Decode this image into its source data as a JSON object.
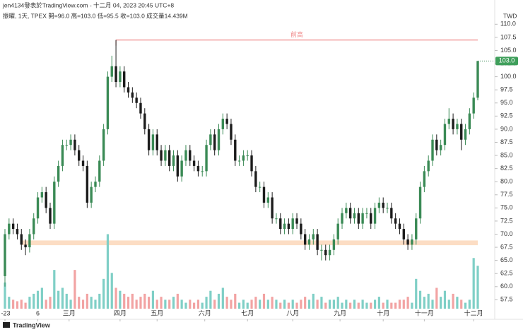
{
  "chart_data": {
    "type": "candlestick",
    "title": "jen4134發表於TradingView.com - 十二月 04, 2023 20:45 UTC+8",
    "subtitle": "振曜, 1天, TPEX 開=96.0 高=103.0 低=95.5 收=103.0 成交量14.439M",
    "currency": "TWD",
    "brand": "TradingView",
    "up_color": "#3a8a55",
    "down_color": "#1c1c1c",
    "volume_up_color": "#7fcfc6",
    "volume_down_color": "#f2a3a3",
    "grid": false,
    "open": [
      62,
      70,
      72,
      71,
      70,
      68,
      67.5,
      70,
      73,
      77,
      78,
      75,
      72,
      80,
      83,
      87,
      87,
      88,
      86,
      84,
      83,
      76,
      79,
      80,
      84,
      90,
      100,
      102,
      99,
      101,
      98,
      97,
      96,
      95,
      93,
      90,
      86,
      89,
      86,
      84,
      86,
      83,
      85,
      81,
      84,
      86,
      84,
      83,
      82,
      82,
      87,
      89,
      86,
      90,
      92,
      91,
      88,
      84,
      84,
      85,
      85,
      82,
      79,
      79,
      76,
      77,
      73,
      73,
      71,
      72,
      71,
      73,
      72,
      70,
      68,
      69,
      70,
      67,
      67,
      66,
      67,
      69,
      72,
      74,
      75,
      73,
      74,
      72,
      74,
      74,
      72,
      75,
      76,
      75,
      75,
      73,
      72,
      71,
      69,
      68,
      69,
      73,
      79,
      82,
      84,
      88,
      86,
      87,
      91,
      92,
      90,
      91,
      88,
      90,
      93,
      96
    ],
    "high": [
      71,
      73,
      73,
      72,
      71,
      69,
      71,
      74,
      78,
      79,
      79,
      76,
      81,
      84,
      88,
      88,
      89,
      89,
      87,
      85,
      84,
      80,
      81,
      85,
      91,
      101,
      104,
      107,
      102,
      102,
      99,
      98,
      97,
      96,
      94,
      91,
      90,
      90,
      87,
      87,
      87,
      86,
      86,
      85,
      87,
      87,
      85,
      84,
      83,
      88,
      90,
      90,
      91,
      93,
      93,
      92,
      89,
      85,
      86,
      86,
      86,
      83,
      80,
      80,
      78,
      78,
      74,
      74,
      73,
      73,
      74,
      74,
      73,
      71,
      70,
      71,
      71,
      68,
      68,
      68,
      70,
      73,
      75,
      76,
      76,
      75,
      75,
      75,
      75,
      75,
      76,
      77,
      77,
      76,
      76,
      74,
      73,
      72,
      70,
      70,
      74,
      80,
      83,
      85,
      89,
      89,
      88,
      92,
      94,
      93,
      92,
      92,
      91,
      94,
      97,
      103
    ],
    "low": [
      60,
      69,
      70,
      69,
      67,
      66,
      66.5,
      69,
      72,
      76,
      74,
      71,
      71,
      79,
      82,
      86,
      86,
      85,
      83,
      82,
      75,
      75,
      78,
      79,
      83,
      89,
      99,
      98,
      98,
      97,
      96,
      95,
      94,
      92,
      89,
      85,
      85,
      85,
      83,
      83,
      82,
      82,
      80,
      80,
      83,
      83,
      82,
      81,
      81,
      81,
      86,
      85,
      85,
      89,
      90,
      87,
      83,
      83,
      83,
      84,
      81,
      78,
      78,
      75,
      75,
      72,
      72,
      70,
      70,
      70,
      70,
      71,
      69,
      67,
      67,
      68,
      66,
      65,
      65,
      65,
      66,
      68,
      71,
      73,
      72,
      72,
      71,
      71,
      73,
      71,
      71,
      74,
      74,
      74,
      72,
      71,
      70,
      68,
      67,
      67,
      68,
      72,
      78,
      81,
      83,
      85,
      85,
      86,
      90,
      89,
      89,
      86,
      87,
      89,
      92,
      95.5
    ],
    "close": [
      70,
      72,
      71,
      70,
      68,
      67.5,
      70,
      73,
      77,
      78,
      75,
      72,
      80,
      83,
      87,
      87,
      88,
      86,
      84,
      83,
      76,
      79,
      80,
      84,
      90,
      100,
      102,
      99,
      101,
      98,
      97,
      96,
      95,
      93,
      90,
      86,
      89,
      86,
      84,
      86,
      83,
      85,
      81,
      84,
      86,
      84,
      83,
      82,
      82,
      87,
      89,
      86,
      90,
      92,
      91,
      88,
      84,
      84,
      85,
      85,
      82,
      79,
      79,
      76,
      77,
      73,
      73,
      71,
      72,
      71,
      73,
      72,
      70,
      68,
      69,
      70,
      67,
      67,
      66,
      67,
      69,
      72,
      74,
      75,
      73,
      74,
      72,
      74,
      74,
      72,
      75,
      76,
      75,
      75,
      73,
      72,
      71,
      69,
      68,
      69,
      73,
      79,
      82,
      84,
      88,
      86,
      87,
      91,
      92,
      90,
      91,
      88,
      90,
      93,
      96,
      103
    ],
    "volume": [
      8.8,
      4,
      3,
      2.5,
      3,
      2,
      4,
      5,
      6,
      7,
      3,
      4,
      13,
      6,
      7,
      5,
      3,
      13,
      4,
      3,
      5,
      4,
      3,
      5,
      10,
      25,
      12,
      7,
      6,
      5,
      4,
      5,
      3,
      4,
      5,
      4,
      6,
      3,
      4,
      3,
      3,
      4,
      5,
      3,
      2,
      3,
      2,
      3,
      2,
      4,
      6,
      3,
      5,
      7,
      4,
      3,
      5,
      2,
      3,
      2,
      3,
      4,
      3,
      5,
      3,
      4,
      3,
      2,
      3,
      2,
      3,
      2,
      3,
      4,
      3,
      5,
      3,
      4,
      2,
      3,
      3,
      4,
      2,
      3,
      2,
      3,
      2,
      3,
      2,
      2,
      3,
      4,
      2,
      3,
      2,
      2,
      3,
      3,
      4,
      2,
      10,
      6,
      4,
      5,
      3,
      7,
      4,
      6,
      3,
      5,
      4,
      3,
      2,
      3,
      17,
      14.4
    ],
    "volume_lim": [
      0,
      100
    ],
    "ylim": [
      55.8,
      112.6
    ],
    "yticks": [
      57.5,
      {
        "value": 60,
        "label": "60.0"
      },
      62.5,
      {
        "value": 65,
        "label": "65.0"
      },
      67.5,
      {
        "value": 70,
        "label": "70.0"
      },
      72.5,
      {
        "value": 75,
        "label": "75.0"
      },
      77.5,
      {
        "value": 80,
        "label": "80.0"
      },
      82.5,
      {
        "value": 85,
        "label": "85.0"
      },
      87.5,
      {
        "value": 90,
        "label": "90.0"
      },
      92.5,
      {
        "value": 95,
        "label": "95.0"
      },
      97.5,
      {
        "value": 100,
        "label": "100.0"
      },
      102.5,
      {
        "value": 105,
        "label": "105.0"
      },
      107.5,
      {
        "value": 110,
        "label": "110.0"
      }
    ],
    "xticks": [
      {
        "value": 0,
        "label": "-23"
      },
      {
        "value": 8,
        "label": "6"
      },
      {
        "value": 15.6,
        "label": "三月"
      },
      {
        "value": 28,
        "label": "四月"
      },
      {
        "value": 37,
        "label": "五月"
      },
      {
        "value": 48.6,
        "label": "六月"
      },
      {
        "value": 59,
        "label": "七月"
      },
      {
        "value": 70,
        "label": "八月"
      },
      {
        "value": 81.5,
        "label": "九月"
      },
      {
        "value": 92,
        "label": "十月"
      },
      {
        "value": 102,
        "label": "十一月"
      },
      {
        "value": 114,
        "label": "十二月"
      }
    ],
    "last_price": {
      "value": 103,
      "label": "103.0"
    },
    "annotations": [
      {
        "text": "前高",
        "value": 107,
        "from": 27,
        "color": "#f08a8a"
      }
    ],
    "bands": [
      {
        "low": 67.9,
        "high": 68.8,
        "from": 4,
        "color": "#fbd5b5"
      }
    ]
  }
}
